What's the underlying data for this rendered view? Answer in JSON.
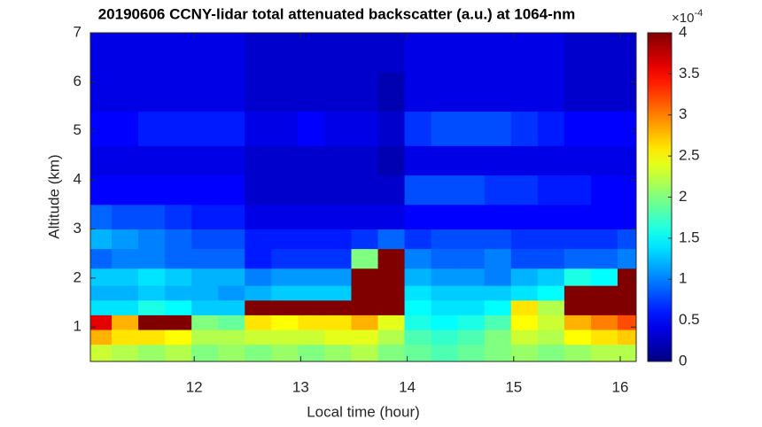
{
  "chart_data": {
    "type": "heatmap",
    "title": "20190606 CCNY-lidar total attenuated backscatter (a.u.) at 1064-nm",
    "x_label": "Local time (hour)",
    "y_label": "Altitude (km)",
    "xlim": [
      11.025,
      16.15
    ],
    "ylim": [
      0.3,
      7
    ],
    "xticks": [
      12,
      13,
      14,
      15,
      16
    ],
    "yticks": [
      1,
      2,
      3,
      4,
      5,
      6,
      7
    ],
    "colormap": "jet",
    "colorbar": {
      "lim": [
        0,
        4
      ],
      "ticks": [
        0,
        0.5,
        1,
        1.5,
        2,
        2.5,
        3,
        3.5,
        4
      ],
      "scale_base": "×10",
      "scale_exponent": "-4"
    },
    "x": [
      11.1,
      11.35,
      11.6,
      11.85,
      12.1,
      12.35,
      12.6,
      12.85,
      13.1,
      13.35,
      13.6,
      13.85,
      14.1,
      14.35,
      14.6,
      14.85,
      15.1,
      15.35,
      15.6,
      15.85,
      16.1
    ],
    "y": [
      0.5,
      0.8,
      1.1,
      1.4,
      1.7,
      2.0,
      2.4,
      2.8,
      3.2,
      3.8,
      4.4,
      5.0,
      5.8,
      6.6
    ],
    "z": [
      [
        2.3,
        2.2,
        2.1,
        2.2,
        2.0,
        2.1,
        2.0,
        2.1,
        2.0,
        2.1,
        2.2,
        2.0,
        1.9,
        1.8,
        1.9,
        2.0,
        2.1,
        2.0,
        2.1,
        2.2,
        2.2
      ],
      [
        2.8,
        2.6,
        2.6,
        2.5,
        2.2,
        2.2,
        2.3,
        2.3,
        2.3,
        2.4,
        2.4,
        2.2,
        1.8,
        1.7,
        1.8,
        2.0,
        2.3,
        2.2,
        2.5,
        2.6,
        2.7
      ],
      [
        3.6,
        2.8,
        4,
        4,
        2.0,
        1.9,
        2.6,
        2.5,
        2.6,
        2.6,
        2.8,
        2.4,
        1.6,
        1.5,
        1.6,
        1.8,
        2.5,
        2.3,
        2.8,
        3.0,
        3.2
      ],
      [
        1.4,
        1.4,
        1.6,
        1.5,
        1.3,
        1.3,
        4,
        4,
        4,
        4,
        4,
        4,
        1.5,
        1.4,
        1.4,
        1.5,
        2.6,
        2.2,
        4,
        4,
        4
      ],
      [
        1.2,
        1.2,
        1.3,
        1.2,
        1.2,
        1.1,
        1.2,
        1.3,
        1.3,
        1.3,
        4,
        4,
        1.4,
        1.3,
        1.3,
        1.3,
        1.4,
        1.5,
        4,
        4,
        4
      ],
      [
        1.3,
        1.3,
        1.4,
        1.3,
        1.2,
        1.2,
        1.0,
        1.1,
        1.1,
        1.1,
        4,
        4,
        1.2,
        1.1,
        1.1,
        1.0,
        1.2,
        1.3,
        1.6,
        1.5,
        4
      ],
      [
        0.9,
        1.0,
        1.0,
        0.9,
        0.9,
        0.9,
        0.6,
        0.7,
        0.7,
        0.7,
        2.0,
        4,
        1.0,
        0.9,
        0.9,
        1.0,
        0.8,
        0.8,
        0.9,
        0.9,
        1.0
      ],
      [
        1.2,
        1.1,
        1.0,
        0.9,
        0.8,
        0.8,
        0.6,
        0.6,
        0.6,
        0.6,
        0.7,
        0.9,
        0.7,
        0.8,
        0.8,
        0.8,
        0.7,
        0.7,
        0.7,
        0.7,
        0.8
      ],
      [
        0.9,
        0.8,
        0.8,
        0.7,
        0.6,
        0.6,
        0.4,
        0.4,
        0.4,
        0.4,
        0.4,
        0.4,
        0.5,
        0.5,
        0.5,
        0.5,
        0.5,
        0.5,
        0.5,
        0.5,
        0.5
      ],
      [
        0.5,
        0.5,
        0.5,
        0.5,
        0.5,
        0.5,
        0.3,
        0.3,
        0.3,
        0.3,
        0.3,
        0.3,
        0.8,
        0.8,
        0.8,
        0.7,
        0.7,
        0.6,
        0.6,
        0.5,
        0.5
      ],
      [
        0.4,
        0.4,
        0.4,
        0.4,
        0.4,
        0.4,
        0.3,
        0.3,
        0.3,
        0.3,
        0.3,
        0.2,
        0.4,
        0.4,
        0.4,
        0.4,
        0.4,
        0.4,
        0.4,
        0.4,
        0.4
      ],
      [
        0.5,
        0.5,
        0.6,
        0.6,
        0.6,
        0.6,
        0.4,
        0.4,
        0.5,
        0.4,
        0.4,
        0.3,
        0.7,
        0.8,
        0.8,
        0.8,
        0.7,
        0.6,
        0.5,
        0.5,
        0.5
      ],
      [
        0.4,
        0.4,
        0.4,
        0.4,
        0.4,
        0.4,
        0.3,
        0.3,
        0.3,
        0.3,
        0.3,
        0.2,
        0.4,
        0.4,
        0.4,
        0.4,
        0.4,
        0.4,
        0.3,
        0.3,
        0.3
      ],
      [
        0.4,
        0.4,
        0.4,
        0.4,
        0.4,
        0.4,
        0.3,
        0.3,
        0.3,
        0.3,
        0.3,
        0.3,
        0.4,
        0.4,
        0.4,
        0.4,
        0.4,
        0.4,
        0.3,
        0.3,
        0.3
      ]
    ]
  }
}
